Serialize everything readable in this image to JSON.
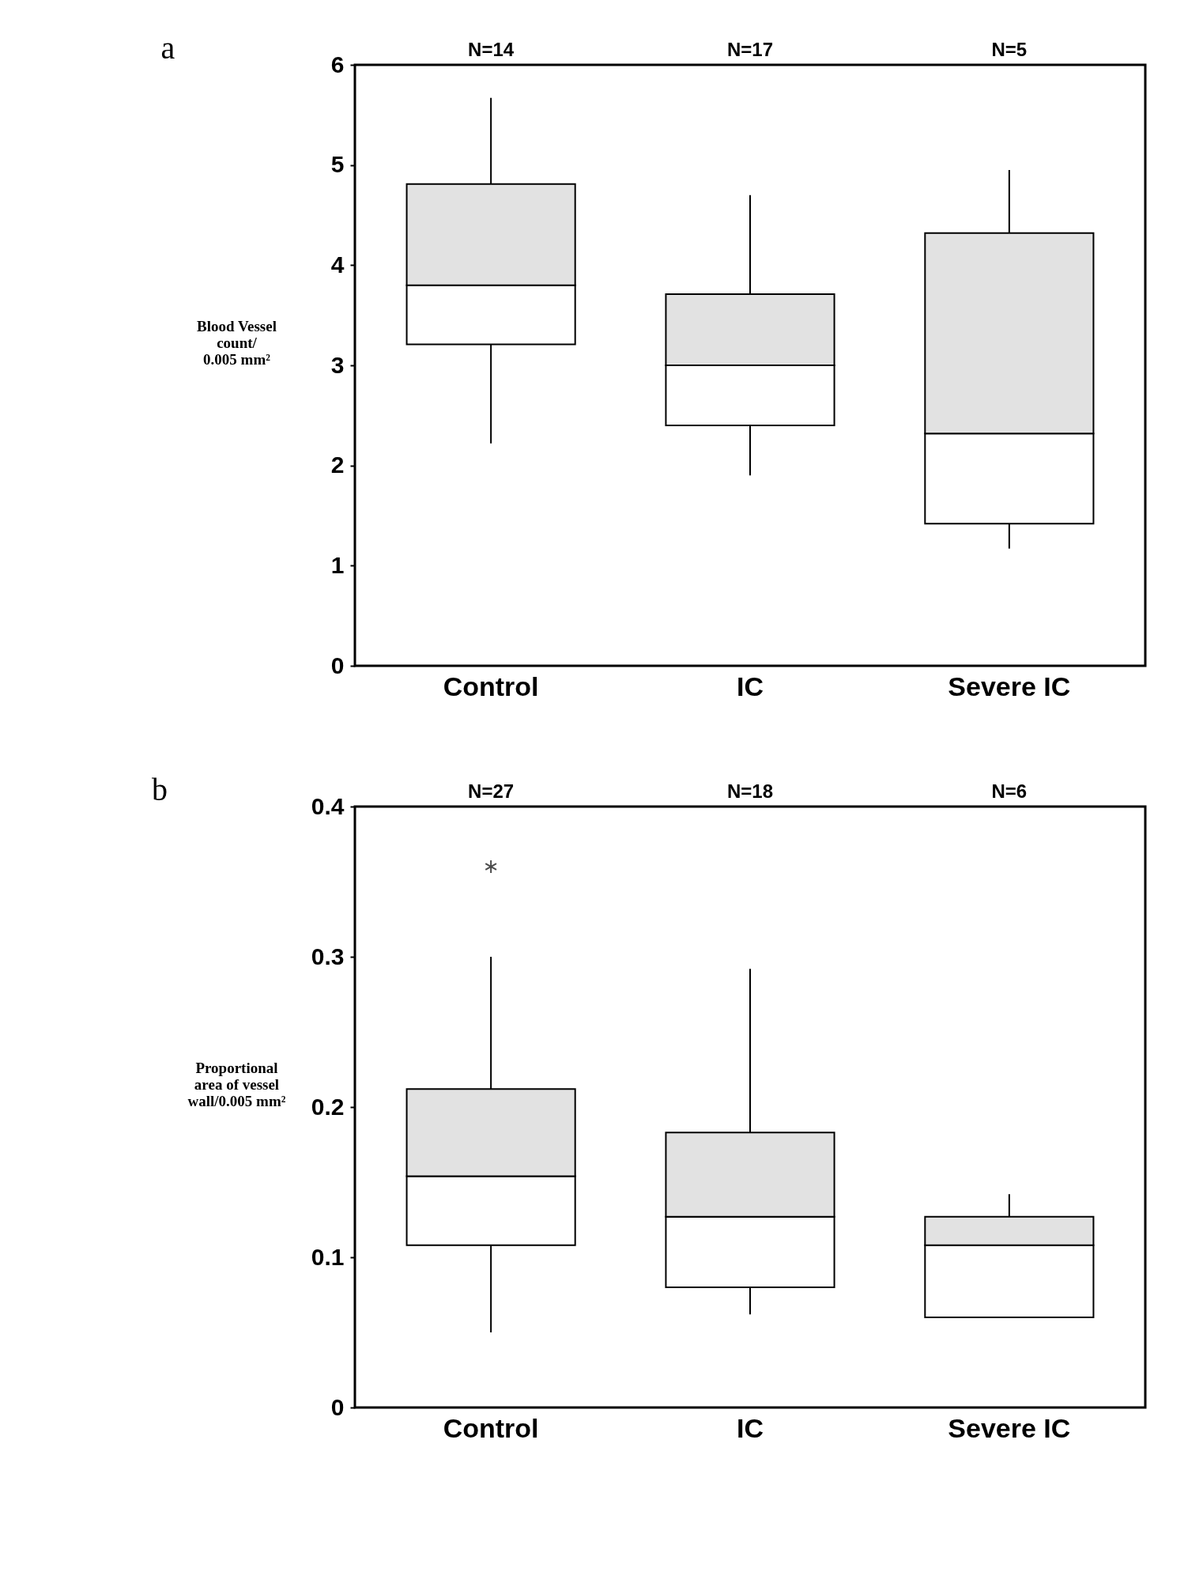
{
  "chart_data": [
    {
      "type": "box",
      "title": "a",
      "ylabel": "Blood Vessel\ncount/\n0.005 mm²",
      "categories": [
        "Control",
        "IC",
        "Severe IC"
      ],
      "ylim": [
        0,
        6
      ],
      "yticks": [
        0,
        1,
        2,
        3,
        4,
        5,
        6
      ],
      "grid": false,
      "annotations": [
        "N=14",
        "N=17",
        "N=5"
      ],
      "boxes": [
        {
          "low": 2.22,
          "q1": 3.21,
          "median": 3.8,
          "q3": 4.81,
          "high": 5.67
        },
        {
          "low": 1.9,
          "q1": 2.4,
          "median": 3.0,
          "q3": 3.71,
          "high": 4.7
        },
        {
          "low": 1.17,
          "q1": 1.42,
          "median": 2.32,
          "q3": 4.32,
          "high": 4.95
        }
      ]
    },
    {
      "type": "box",
      "title": "b",
      "ylabel": "Proportional\narea of vessel\nwall/0.005 mm²",
      "categories": [
        "Control",
        "IC",
        "Severe IC"
      ],
      "ylim": [
        0,
        0.4
      ],
      "yticks": [
        0,
        0.1,
        0.2,
        0.3,
        0.4
      ],
      "grid": false,
      "annotations": [
        "N=27",
        "N=18",
        "N=6"
      ],
      "boxes": [
        {
          "low": 0.05,
          "q1": 0.108,
          "median": 0.154,
          "q3": 0.212,
          "high": 0.3,
          "outliers": [
            0.36
          ]
        },
        {
          "low": 0.062,
          "q1": 0.08,
          "median": 0.127,
          "q3": 0.183,
          "high": 0.292
        },
        {
          "low": 0.06,
          "q1": 0.06,
          "median": 0.108,
          "q3": 0.127,
          "high": 0.142
        }
      ]
    }
  ]
}
